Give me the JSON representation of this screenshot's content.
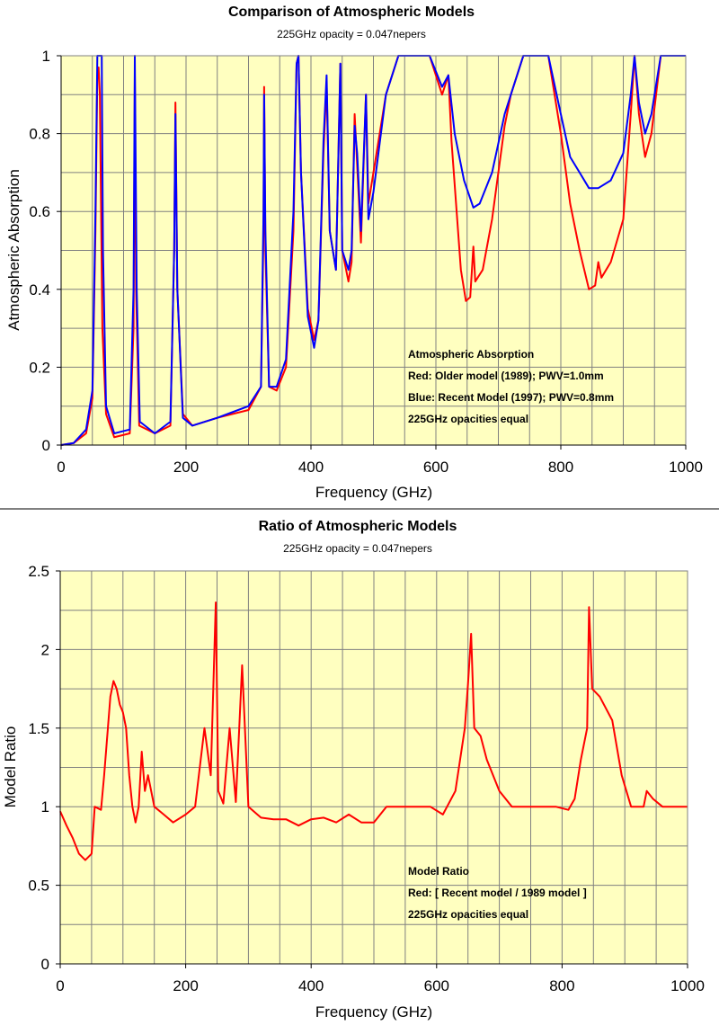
{
  "chart_data": [
    {
      "type": "line",
      "title": "Comparison of Atmospheric Models",
      "subtitle": "225GHz opacity = 0.047nepers",
      "xlabel": "Frequency (GHz)",
      "ylabel": "Atmospheric Absorption",
      "xlim": [
        0,
        1000
      ],
      "ylim": [
        0,
        1
      ],
      "xticks": [
        "0",
        "200",
        "400",
        "600",
        "800",
        "1000"
      ],
      "yticks": [
        "0",
        "0.2",
        "0.4",
        "0.6",
        "0.8",
        "1"
      ],
      "grid": true,
      "plot_background": "#ffffc0",
      "annotation": [
        "Atmospheric Absorption",
        "Red:  Older model (1989); PWV=1.0mm",
        "Blue:  Recent Model (1997); PWV=0.8mm",
        "225GHz opacities equal"
      ],
      "series": [
        {
          "color": "#ff0000",
          "points": [
            [
              0,
              0
            ],
            [
              20,
              0.005
            ],
            [
              40,
              0.03
            ],
            [
              50,
              0.12
            ],
            [
              55,
              0.55
            ],
            [
              58,
              0.95
            ],
            [
              60,
              0.97
            ],
            [
              62,
              0.9
            ],
            [
              66,
              0.3
            ],
            [
              72,
              0.08
            ],
            [
              85,
              0.02
            ],
            [
              110,
              0.03
            ],
            [
              116,
              0.3
            ],
            [
              118,
              0.95
            ],
            [
              120,
              0.4
            ],
            [
              125,
              0.05
            ],
            [
              150,
              0.03
            ],
            [
              175,
              0.05
            ],
            [
              181,
              0.5
            ],
            [
              183,
              0.88
            ],
            [
              186,
              0.4
            ],
            [
              195,
              0.08
            ],
            [
              210,
              0.05
            ],
            [
              250,
              0.07
            ],
            [
              300,
              0.09
            ],
            [
              320,
              0.15
            ],
            [
              324,
              0.55
            ],
            [
              325,
              0.92
            ],
            [
              327,
              0.5
            ],
            [
              333,
              0.15
            ],
            [
              345,
              0.14
            ],
            [
              360,
              0.2
            ],
            [
              372,
              0.55
            ],
            [
              377,
              0.98
            ],
            [
              380,
              1.0
            ],
            [
              384,
              0.7
            ],
            [
              395,
              0.35
            ],
            [
              405,
              0.27
            ],
            [
              412,
              0.32
            ],
            [
              420,
              0.75
            ],
            [
              425,
              0.93
            ],
            [
              430,
              0.55
            ],
            [
              440,
              0.45
            ],
            [
              447,
              0.98
            ],
            [
              450,
              0.5
            ],
            [
              460,
              0.42
            ],
            [
              465,
              0.47
            ],
            [
              470,
              0.85
            ],
            [
              474,
              0.72
            ],
            [
              480,
              0.52
            ],
            [
              488,
              0.9
            ],
            [
              492,
              0.62
            ],
            [
              500,
              0.7
            ],
            [
              520,
              0.9
            ],
            [
              540,
              1.0
            ],
            [
              590,
              1.0
            ],
            [
              610,
              0.9
            ],
            [
              620,
              0.95
            ],
            [
              625,
              0.78
            ],
            [
              640,
              0.45
            ],
            [
              648,
              0.37
            ],
            [
              655,
              0.38
            ],
            [
              660,
              0.51
            ],
            [
              663,
              0.42
            ],
            [
              675,
              0.45
            ],
            [
              690,
              0.58
            ],
            [
              710,
              0.82
            ],
            [
              720,
              0.9
            ],
            [
              740,
              1.0
            ],
            [
              780,
              1.0
            ],
            [
              800,
              0.8
            ],
            [
              815,
              0.62
            ],
            [
              830,
              0.5
            ],
            [
              845,
              0.4
            ],
            [
              855,
              0.41
            ],
            [
              860,
              0.47
            ],
            [
              865,
              0.43
            ],
            [
              880,
              0.47
            ],
            [
              900,
              0.58
            ],
            [
              912,
              0.85
            ],
            [
              918,
              1.0
            ],
            [
              925,
              0.85
            ],
            [
              935,
              0.74
            ],
            [
              945,
              0.8
            ],
            [
              960,
              1.0
            ],
            [
              1000,
              1.0
            ]
          ]
        },
        {
          "color": "#0000ff",
          "points": [
            [
              0,
              0
            ],
            [
              20,
              0.005
            ],
            [
              40,
              0.04
            ],
            [
              50,
              0.14
            ],
            [
              55,
              0.6
            ],
            [
              58,
              1.0
            ],
            [
              65,
              1.0
            ],
            [
              67,
              0.5
            ],
            [
              72,
              0.1
            ],
            [
              85,
              0.03
            ],
            [
              110,
              0.04
            ],
            [
              116,
              0.4
            ],
            [
              118,
              1.0
            ],
            [
              121,
              0.4
            ],
            [
              126,
              0.06
            ],
            [
              150,
              0.03
            ],
            [
              175,
              0.06
            ],
            [
              181,
              0.5
            ],
            [
              183,
              0.85
            ],
            [
              186,
              0.4
            ],
            [
              195,
              0.07
            ],
            [
              210,
              0.05
            ],
            [
              250,
              0.07
            ],
            [
              300,
              0.1
            ],
            [
              320,
              0.15
            ],
            [
              324,
              0.6
            ],
            [
              325,
              0.9
            ],
            [
              327,
              0.55
            ],
            [
              333,
              0.15
            ],
            [
              345,
              0.15
            ],
            [
              360,
              0.22
            ],
            [
              372,
              0.6
            ],
            [
              377,
              0.98
            ],
            [
              380,
              1.0
            ],
            [
              384,
              0.7
            ],
            [
              395,
              0.33
            ],
            [
              405,
              0.25
            ],
            [
              412,
              0.32
            ],
            [
              420,
              0.78
            ],
            [
              425,
              0.95
            ],
            [
              430,
              0.55
            ],
            [
              440,
              0.45
            ],
            [
              447,
              0.98
            ],
            [
              450,
              0.5
            ],
            [
              460,
              0.45
            ],
            [
              465,
              0.5
            ],
            [
              470,
              0.82
            ],
            [
              474,
              0.75
            ],
            [
              480,
              0.55
            ],
            [
              488,
              0.9
            ],
            [
              492,
              0.58
            ],
            [
              500,
              0.65
            ],
            [
              520,
              0.9
            ],
            [
              540,
              1.0
            ],
            [
              590,
              1.0
            ],
            [
              610,
              0.92
            ],
            [
              620,
              0.95
            ],
            [
              630,
              0.8
            ],
            [
              645,
              0.68
            ],
            [
              660,
              0.61
            ],
            [
              670,
              0.62
            ],
            [
              690,
              0.7
            ],
            [
              710,
              0.85
            ],
            [
              720,
              0.9
            ],
            [
              740,
              1.0
            ],
            [
              780,
              1.0
            ],
            [
              800,
              0.85
            ],
            [
              815,
              0.74
            ],
            [
              830,
              0.7
            ],
            [
              845,
              0.66
            ],
            [
              860,
              0.66
            ],
            [
              880,
              0.68
            ],
            [
              900,
              0.75
            ],
            [
              912,
              0.9
            ],
            [
              918,
              1.0
            ],
            [
              925,
              0.88
            ],
            [
              935,
              0.8
            ],
            [
              945,
              0.85
            ],
            [
              960,
              1.0
            ],
            [
              1000,
              1.0
            ]
          ]
        }
      ]
    },
    {
      "type": "line",
      "title": "Ratio of Atmospheric Models",
      "subtitle": "225GHz opacity = 0.047nepers",
      "xlabel": "Frequency (GHz)",
      "ylabel": "Model Ratio",
      "xlim": [
        0,
        1000
      ],
      "ylim": [
        0,
        2.5
      ],
      "xticks": [
        "0",
        "200",
        "400",
        "600",
        "800",
        "1000"
      ],
      "yticks": [
        "0",
        "0.5",
        "1",
        "1.5",
        "2",
        "2.5"
      ],
      "grid": true,
      "plot_background": "#ffffc0",
      "annotation": [
        "Model Ratio",
        "Red:  [ Recent model / 1989 model ]",
        "225GHz opacities equal"
      ],
      "series": [
        {
          "color": "#ff0000",
          "points": [
            [
              0,
              0.97
            ],
            [
              10,
              0.88
            ],
            [
              20,
              0.8
            ],
            [
              30,
              0.7
            ],
            [
              40,
              0.66
            ],
            [
              50,
              0.7
            ],
            [
              55,
              1.0
            ],
            [
              65,
              0.98
            ],
            [
              70,
              1.2
            ],
            [
              80,
              1.7
            ],
            [
              85,
              1.8
            ],
            [
              90,
              1.75
            ],
            [
              95,
              1.65
            ],
            [
              100,
              1.6
            ],
            [
              105,
              1.5
            ],
            [
              110,
              1.2
            ],
            [
              115,
              1.0
            ],
            [
              120,
              0.9
            ],
            [
              125,
              1.0
            ],
            [
              130,
              1.35
            ],
            [
              135,
              1.1
            ],
            [
              140,
              1.2
            ],
            [
              150,
              1.0
            ],
            [
              165,
              0.95
            ],
            [
              180,
              0.9
            ],
            [
              200,
              0.95
            ],
            [
              215,
              1.0
            ],
            [
              230,
              1.5
            ],
            [
              240,
              1.2
            ],
            [
              248,
              2.3
            ],
            [
              252,
              1.1
            ],
            [
              260,
              1.02
            ],
            [
              270,
              1.5
            ],
            [
              280,
              1.03
            ],
            [
              290,
              1.9
            ],
            [
              300,
              1.0
            ],
            [
              320,
              0.93
            ],
            [
              340,
              0.92
            ],
            [
              360,
              0.92
            ],
            [
              380,
              0.88
            ],
            [
              400,
              0.92
            ],
            [
              420,
              0.93
            ],
            [
              440,
              0.9
            ],
            [
              460,
              0.95
            ],
            [
              480,
              0.9
            ],
            [
              500,
              0.9
            ],
            [
              520,
              1.0
            ],
            [
              590,
              1.0
            ],
            [
              610,
              0.95
            ],
            [
              630,
              1.1
            ],
            [
              645,
              1.5
            ],
            [
              650,
              1.78
            ],
            [
              655,
              2.1
            ],
            [
              660,
              1.5
            ],
            [
              670,
              1.45
            ],
            [
              680,
              1.3
            ],
            [
              700,
              1.1
            ],
            [
              720,
              1.0
            ],
            [
              740,
              1.0
            ],
            [
              790,
              1.0
            ],
            [
              810,
              0.98
            ],
            [
              820,
              1.05
            ],
            [
              830,
              1.3
            ],
            [
              840,
              1.5
            ],
            [
              843,
              2.27
            ],
            [
              848,
              1.75
            ],
            [
              860,
              1.7
            ],
            [
              880,
              1.55
            ],
            [
              895,
              1.2
            ],
            [
              910,
              1.0
            ],
            [
              930,
              1.0
            ],
            [
              935,
              1.1
            ],
            [
              945,
              1.05
            ],
            [
              960,
              1.0
            ],
            [
              1000,
              1.0
            ]
          ]
        }
      ]
    }
  ]
}
